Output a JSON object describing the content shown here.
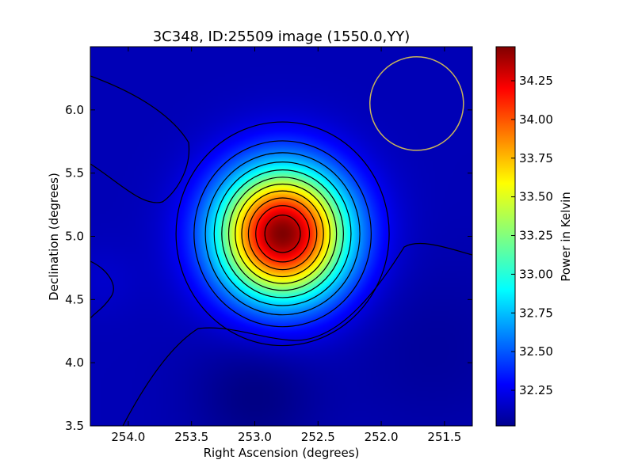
{
  "chart_data": {
    "type": "heatmap",
    "title": "3C348, ID:25509 image (1550.0,YY)",
    "xlabel": "Right Ascension (degrees)",
    "ylabel": "Declination (degrees)",
    "colorbar_label": "Power in Kelvin",
    "xlim": [
      254.3,
      251.28
    ],
    "ylim": [
      3.5,
      6.5
    ],
    "x_ticks": [
      {
        "value": 254.0,
        "label": "254.0"
      },
      {
        "value": 253.5,
        "label": "253.5"
      },
      {
        "value": 253.0,
        "label": "253.0"
      },
      {
        "value": 252.5,
        "label": "252.5"
      },
      {
        "value": 252.0,
        "label": "252.0"
      },
      {
        "value": 251.5,
        "label": "251.5"
      }
    ],
    "y_ticks": [
      {
        "value": 3.5,
        "label": "3.5"
      },
      {
        "value": 4.0,
        "label": "4.0"
      },
      {
        "value": 4.5,
        "label": "4.5"
      },
      {
        "value": 5.0,
        "label": "5.0"
      },
      {
        "value": 5.5,
        "label": "5.5"
      },
      {
        "value": 6.0,
        "label": "6.0"
      }
    ],
    "colorbar_range": [
      32.02,
      34.47
    ],
    "colorbar_ticks": [
      {
        "value": 32.25,
        "label": "32.25"
      },
      {
        "value": 32.5,
        "label": "32.50"
      },
      {
        "value": 32.75,
        "label": "32.75"
      },
      {
        "value": 33.0,
        "label": "33.00"
      },
      {
        "value": 33.25,
        "label": "33.25"
      },
      {
        "value": 33.5,
        "label": "33.50"
      },
      {
        "value": 33.75,
        "label": "33.75"
      },
      {
        "value": 34.0,
        "label": "34.00"
      },
      {
        "value": 34.25,
        "label": "34.25"
      }
    ],
    "colormap": "jet",
    "peak": {
      "ra": 252.78,
      "dec": 5.02,
      "value": 34.47
    },
    "background_level": 32.15,
    "beam_circle": {
      "ra": 251.72,
      "dec": 6.05,
      "radius_deg": 0.37,
      "color": "#c8b45a"
    },
    "contours": true,
    "grid": false
  }
}
